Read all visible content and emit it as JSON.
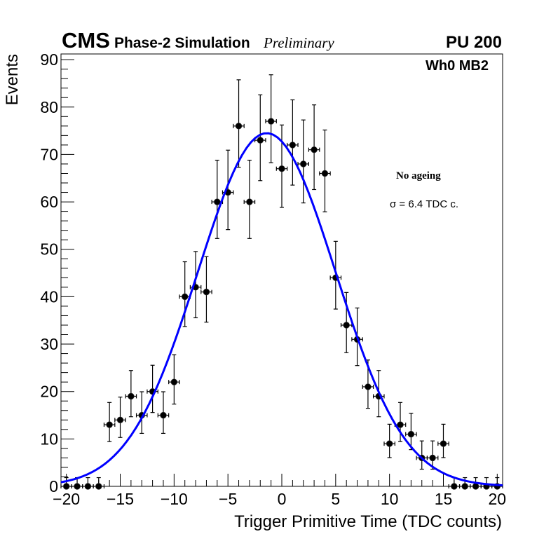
{
  "header": {
    "experiment": "CMS",
    "subtitle": "Phase-2 Simulation",
    "status": "Preliminary",
    "pileup": "PU 200"
  },
  "annotations": {
    "station": "Wh0 MB2",
    "condition": "No ageing",
    "resolution": "σ = 6.4 TDC c."
  },
  "chart_data": {
    "type": "scatter",
    "title": "",
    "xlabel": "Trigger Primitive Time (TDC counts)",
    "ylabel": "Events",
    "xlim": [
      -20.5,
      20.5
    ],
    "ylim": [
      0,
      91.2
    ],
    "grid": false,
    "x_ticks": {
      "values": [
        -20,
        -15,
        -10,
        -5,
        0,
        5,
        10,
        15,
        20
      ],
      "labels": [
        "−20",
        "−15",
        "−10",
        "−5",
        "0",
        "5",
        "10",
        "15",
        "20"
      ],
      "minor_step": 1
    },
    "y_ticks": {
      "values": [
        0,
        10,
        20,
        30,
        40,
        50,
        60,
        70,
        80,
        90
      ],
      "labels": [
        "0",
        "10",
        "20",
        "30",
        "40",
        "50",
        "60",
        "70",
        "80",
        "90"
      ],
      "minor_step": 2
    },
    "series": [
      {
        "name": "Simulated events",
        "kind": "histogram-points-with-errors",
        "color": "#000000",
        "x_err": 0.5,
        "x": [
          -20,
          -19,
          -18,
          -17,
          -16,
          -15,
          -14,
          -13,
          -12,
          -11,
          -10,
          -9,
          -8,
          -7,
          -6,
          -5,
          -4,
          -3,
          -2,
          -1,
          0,
          1,
          2,
          3,
          4,
          5,
          6,
          7,
          8,
          9,
          10,
          11,
          12,
          13,
          14,
          15,
          16,
          17,
          18,
          19,
          20
        ],
        "y": [
          0,
          0,
          0,
          0,
          13,
          14,
          19,
          15,
          20,
          15,
          22,
          40,
          42,
          41,
          60,
          62,
          76,
          60,
          73,
          77,
          67,
          72,
          68,
          71,
          66,
          44,
          34,
          31,
          21,
          19,
          9,
          13,
          11,
          6,
          6,
          9,
          0,
          0,
          0,
          0,
          0
        ],
        "err_low": [
          0,
          0,
          0,
          0,
          3.55,
          3.69,
          4.32,
          3.83,
          4.43,
          3.83,
          4.65,
          6.3,
          6.45,
          6.37,
          7.72,
          7.85,
          8.7,
          7.72,
          8.52,
          8.75,
          8.16,
          8.46,
          8.22,
          8.4,
          8.1,
          6.61,
          5.8,
          5.53,
          4.54,
          4.32,
          2.94,
          3.55,
          3.26,
          2.38,
          2.38,
          2.94,
          0,
          0,
          0,
          0,
          0
        ],
        "err_high": [
          1.84,
          1.84,
          1.84,
          1.84,
          4.69,
          4.83,
          5.43,
          4.95,
          5.54,
          4.95,
          5.76,
          7.37,
          7.53,
          7.45,
          8.79,
          8.91,
          9.75,
          8.79,
          9.58,
          9.81,
          9.22,
          9.52,
          9.28,
          9.46,
          9.16,
          7.68,
          6.89,
          6.62,
          5.65,
          5.43,
          4.1,
          4.69,
          4.41,
          3.58,
          3.58,
          4.1,
          1.84,
          1.84,
          1.84,
          1.84,
          1.84
        ]
      },
      {
        "name": "Gaussian fit",
        "kind": "line",
        "function": "gaussian",
        "color": "#0000ff",
        "constant": 74.5,
        "mean": -1.4,
        "sigma": 6.4,
        "range": [
          -20.5,
          20.5
        ]
      }
    ],
    "legend": null
  }
}
